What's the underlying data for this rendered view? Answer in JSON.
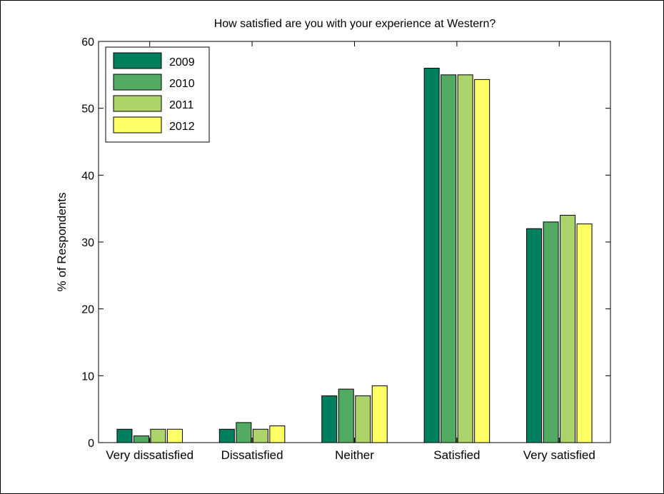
{
  "chart_data": {
    "type": "bar",
    "title": "How satisfied are you with your experience at Western?",
    "xlabel": "",
    "ylabel": "% of Respondents",
    "ylim": [
      0,
      60
    ],
    "yticks": [
      0,
      10,
      20,
      30,
      40,
      50,
      60
    ],
    "grid": false,
    "legend_position": "top-left",
    "categories": [
      "Very dissatisfied",
      "Dissatisfied",
      "Neither",
      "Satisfied",
      "Very satisfied"
    ],
    "series": [
      {
        "name": "2009",
        "color": "#007f5f",
        "values": [
          2,
          2,
          7,
          56,
          32
        ]
      },
      {
        "name": "2010",
        "color": "#53aa62",
        "values": [
          1,
          3,
          8,
          55,
          33
        ]
      },
      {
        "name": "2011",
        "color": "#acd46a",
        "values": [
          2,
          2,
          7,
          55,
          34
        ]
      },
      {
        "name": "2012",
        "color": "#ffff66",
        "values": [
          2,
          2.5,
          8.5,
          54.3,
          32.7
        ]
      }
    ]
  }
}
